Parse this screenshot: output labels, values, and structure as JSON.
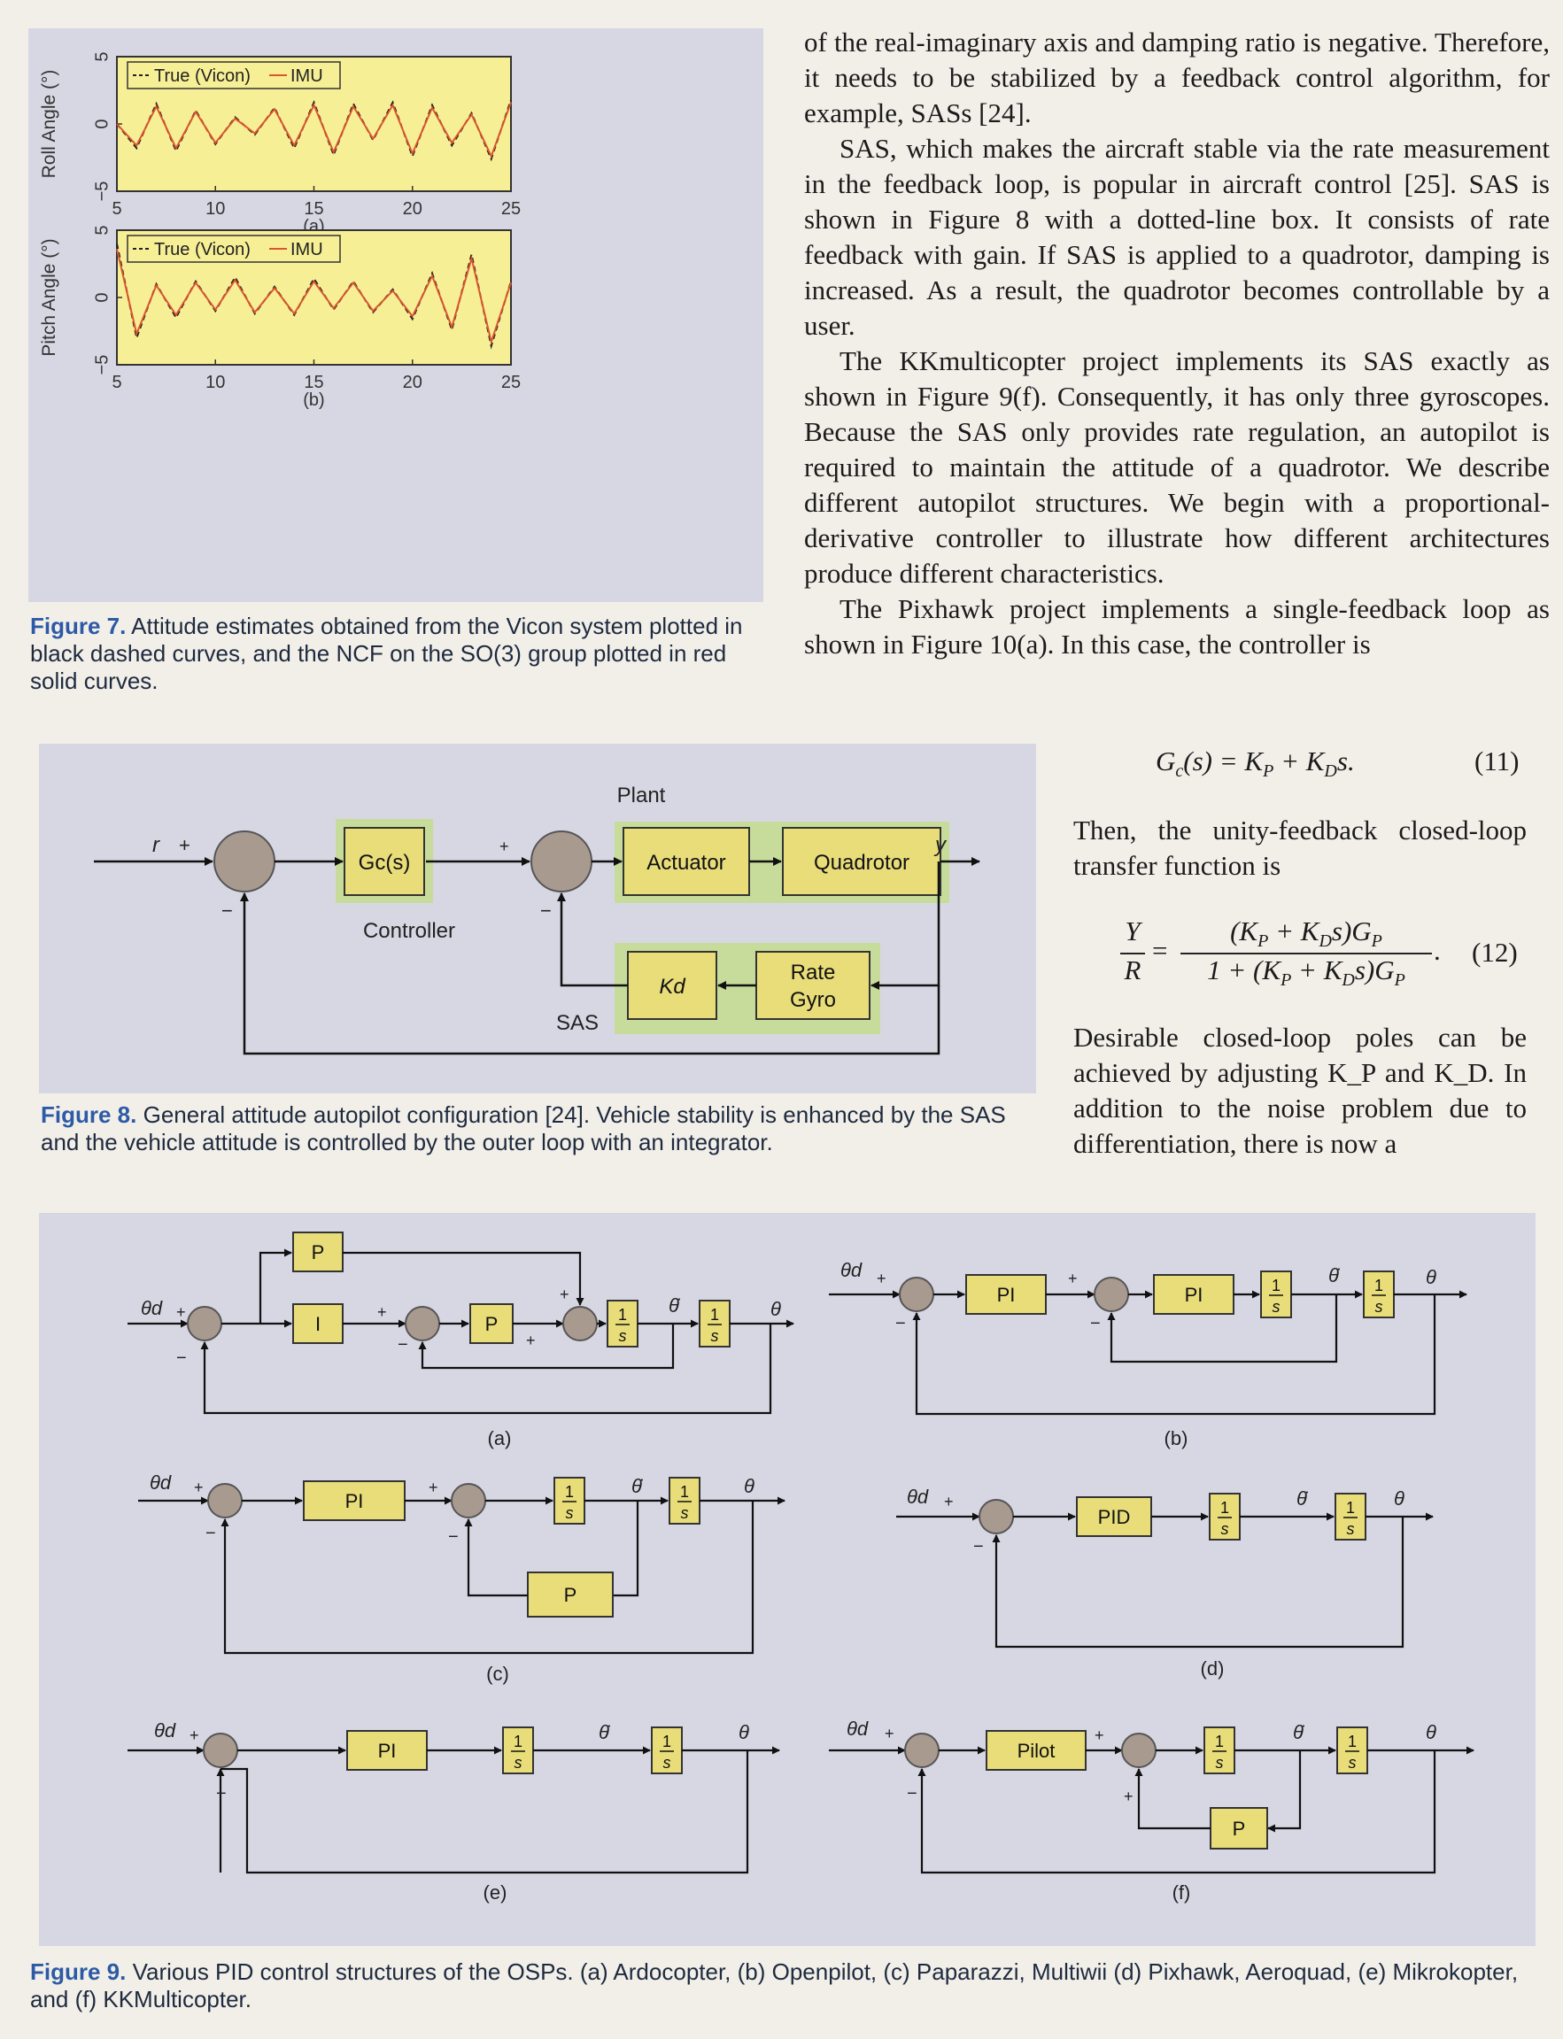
{
  "figure7": {
    "caption_label": "Figure 7.",
    "caption_text": "Attitude estimates obtained from the Vicon system plotted in black dashed curves, and the NCF on the SO(3) group plotted in red solid curves."
  },
  "chart_data": [
    {
      "type": "line",
      "subplot_label": "(a)",
      "ylabel": "Roll Angle (°)",
      "xlabel": "",
      "xlim": [
        5,
        25
      ],
      "ylim": [
        -5,
        5
      ],
      "xticks": [
        "5",
        "10",
        "15",
        "20",
        "25"
      ],
      "yticks": [
        "5",
        "0",
        "−5"
      ],
      "legend": "top-left",
      "series": [
        {
          "name": "True (Vicon)",
          "x": [
            5,
            6,
            7,
            8,
            9,
            10,
            11,
            12,
            13,
            14,
            15,
            16,
            17,
            18,
            19,
            20,
            21,
            22,
            23,
            24,
            25
          ],
          "values": [
            0,
            -1.8,
            1.5,
            -2,
            1,
            -1.5,
            0.5,
            -0.8,
            1.2,
            -1.8,
            1.6,
            -2.3,
            1.5,
            -1.2,
            1.6,
            -2.4,
            1.4,
            -1.6,
            0.8,
            -2.6,
            1.8
          ]
        },
        {
          "name": "IMU",
          "x": [
            5,
            6,
            7,
            8,
            9,
            10,
            11,
            12,
            13,
            14,
            15,
            16,
            17,
            18,
            19,
            20,
            21,
            22,
            23,
            24,
            25
          ],
          "values": [
            0,
            -1.6,
            1.3,
            -1.8,
            0.9,
            -1.4,
            0.4,
            -0.7,
            1.1,
            -1.6,
            1.4,
            -2.1,
            1.3,
            -1.1,
            1.4,
            -2.2,
            1.2,
            -1.4,
            0.7,
            -2.4,
            1.6
          ]
        }
      ]
    },
    {
      "type": "line",
      "subplot_label": "(b)",
      "ylabel": "Pitch Angle (°)",
      "xlabel": "",
      "xlim": [
        5,
        25
      ],
      "ylim": [
        -5,
        5
      ],
      "xticks": [
        "5",
        "10",
        "15",
        "20",
        "25"
      ],
      "yticks": [
        "5",
        "0",
        "−5"
      ],
      "legend": "top-left",
      "series": [
        {
          "name": "True (Vicon)",
          "x": [
            5,
            6,
            7,
            8,
            9,
            10,
            11,
            12,
            13,
            14,
            15,
            16,
            17,
            18,
            19,
            20,
            21,
            22,
            23,
            24,
            25
          ],
          "values": [
            4,
            -3,
            1,
            -1.5,
            1.2,
            -1,
            1.5,
            -1.2,
            0.8,
            -1.3,
            1.4,
            -0.9,
            1.2,
            -1.1,
            0.6,
            -1.6,
            1.8,
            -2.4,
            3.2,
            -3.6,
            1.2
          ]
        },
        {
          "name": "IMU",
          "x": [
            5,
            6,
            7,
            8,
            9,
            10,
            11,
            12,
            13,
            14,
            15,
            16,
            17,
            18,
            19,
            20,
            21,
            22,
            23,
            24,
            25
          ],
          "values": [
            3.6,
            -2.7,
            0.9,
            -1.3,
            1.1,
            -0.9,
            1.3,
            -1.1,
            0.7,
            -1.2,
            1.2,
            -0.8,
            1.1,
            -1,
            0.5,
            -1.4,
            1.6,
            -2.2,
            2.9,
            -3.3,
            1.1
          ]
        }
      ]
    }
  ],
  "text_top": [
    "of the real-imaginary axis and damping ratio is negative. Therefore, it needs to be stabilized by a feedback control algorithm, for example, SASs [24].",
    "SAS, which makes the aircraft stable via the rate measurement in the feedback loop, is popular in aircraft control [25]. SAS is shown in Figure 8 with a dotted-line box. It consists of rate feedback with gain. If SAS is applied to a quadrotor, damping is increased. As a result, the quadrotor becomes controllable by a user.",
    "The KKmulticopter project implements its SAS exactly as shown in Figure 9(f). Consequently, it has only three gyroscopes. Because the SAS only provides rate regulation, an autopilot is required to maintain the attitude of a quadrotor. We describe different autopilot structures. We begin with a proportional-derivative controller to illustrate how different architectures produce different characteristics.",
    "The Pixhawk project implements a single-feedback loop as shown in Figure 10(a). In this case, the controller is"
  ],
  "eq11": {
    "expr": "G_c(s) = K_P + K_D s.",
    "number": "(11)"
  },
  "text_mid": "Then, the unity-feedback closed-loop transfer function is",
  "eq12": {
    "lhs_num": "Y",
    "lhs_den": "R",
    "rhs_num": "(K_P + K_D s)G_P",
    "rhs_den": "1 + (K_P + K_D s)G_P",
    "number": "(12)"
  },
  "text_bottom": "Desirable closed-loop poles can be achieved by adjusting K_P and K_D. In addition to the noise problem due to differentiation, there is now a",
  "figure8": {
    "labels": {
      "plant": "Plant",
      "controller_block": "Gc(s)",
      "controller": "Controller",
      "actuator": "Actuator",
      "quadrotor": "Quadrotor",
      "kd": "Kd",
      "rate": "Rate",
      "gyro": "Gyro",
      "sas": "SAS",
      "r": "r",
      "y": "y",
      "plus": "+",
      "minus": "−"
    },
    "caption_label": "Figure 8.",
    "caption_text": "General attitude autopilot configuration [24]. Vehicle stability is enhanced by the SAS and the vehicle attitude is controlled by the outer loop with an integrator."
  },
  "figure9": {
    "panels": {
      "a": {
        "label": "(a)",
        "blocks": [
          "P",
          "I",
          "P"
        ]
      },
      "b": {
        "label": "(b)",
        "blocks": [
          "PI",
          "PI"
        ]
      },
      "c": {
        "label": "(c)",
        "blocks": [
          "PI",
          "P"
        ]
      },
      "d": {
        "label": "(d)",
        "blocks": [
          "PID"
        ]
      },
      "e": {
        "label": "(e)",
        "blocks": [
          "PI"
        ]
      },
      "f": {
        "label": "(f)",
        "blocks": [
          "Pilot",
          "P"
        ]
      }
    },
    "integrator_num": "1",
    "integrator_den": "s",
    "theta_d": "θd",
    "theta": "θ",
    "theta_dot": "θ̇",
    "caption_label": "Figure 9.",
    "caption_text": "Various PID control structures of the OSPs. (a) Ardocopter, (b) Openpilot, (c) Paparazzi, Multiwii (d) Pixhawk, Aeroquad, (e) Mikrokopter, and (f) KKMulticopter."
  }
}
